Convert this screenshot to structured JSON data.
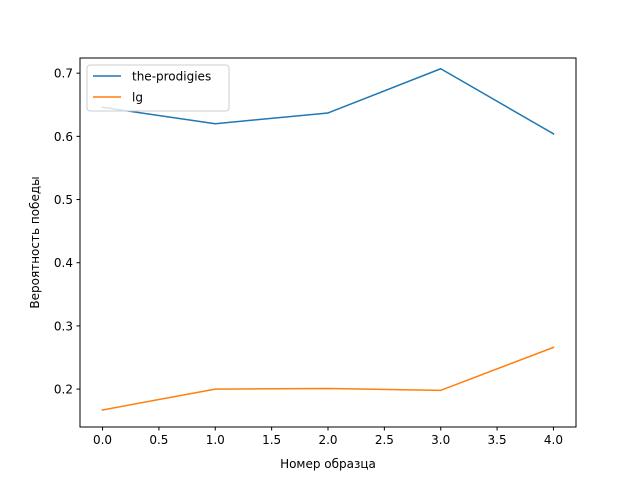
{
  "chart_data": {
    "type": "line",
    "title": "",
    "xlabel": "Номер образца",
    "ylabel": "Вероятность победы",
    "x": [
      0,
      1,
      2,
      3,
      4
    ],
    "xlim": [
      -0.2,
      4.2
    ],
    "ylim": [
      0.14,
      0.724
    ],
    "xticks": [
      0.0,
      0.5,
      1.0,
      1.5,
      2.0,
      2.5,
      3.0,
      3.5,
      4.0
    ],
    "xtick_labels": [
      "0.0",
      "0.5",
      "1.0",
      "1.5",
      "2.0",
      "2.5",
      "3.0",
      "3.5",
      "4.0"
    ],
    "yticks": [
      0.2,
      0.3,
      0.4,
      0.5,
      0.6,
      0.7
    ],
    "ytick_labels": [
      "0.2",
      "0.3",
      "0.4",
      "0.5",
      "0.6",
      "0.7"
    ],
    "grid": false,
    "legend_position": "upper-left",
    "series": [
      {
        "name": "the-prodigies",
        "color": "#1f77b4",
        "values": [
          0.646,
          0.62,
          0.637,
          0.707,
          0.604
        ]
      },
      {
        "name": "lg",
        "color": "#ff7f0e",
        "values": [
          0.167,
          0.2,
          0.201,
          0.198,
          0.266
        ]
      }
    ]
  }
}
